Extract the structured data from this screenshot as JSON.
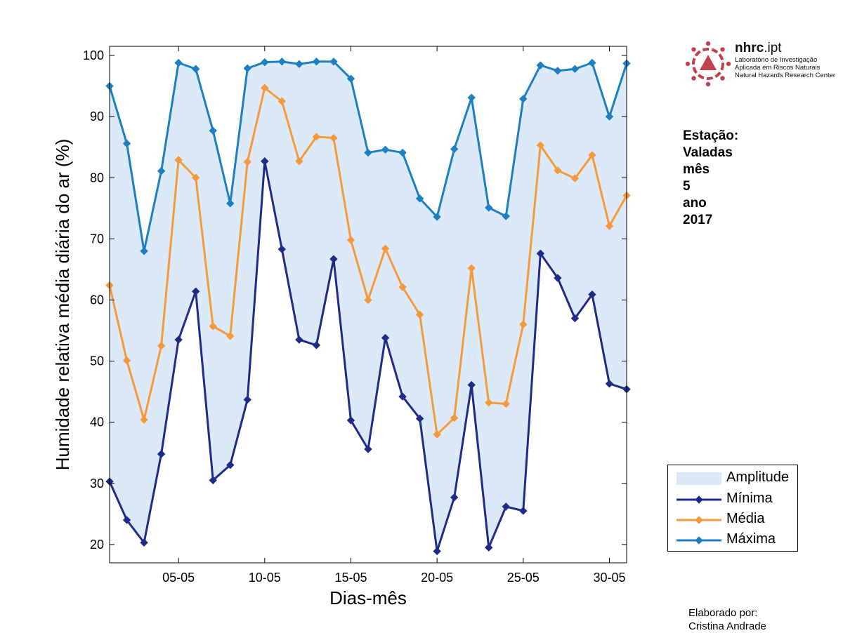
{
  "station": {
    "label": "Estação:",
    "name": "Valadas",
    "month_label": "mês",
    "month": "5",
    "year_label": "ano",
    "year": "2017"
  },
  "credit": {
    "line1": "Elaborado por:",
    "line2": "Cristina Andrade"
  },
  "logo": {
    "name_bold": "nhrc",
    "name_rest": ".ipt",
    "line1": "Laboratório de Investigação",
    "line2": "Aplicada em Riscos Naturais",
    "line3": "Natural Hazards Research Center",
    "color": "#c0404f"
  },
  "chart_data": {
    "type": "line",
    "xlabel": "Dias-mês",
    "ylabel": "Humidade relativa média diária do ar (%)",
    "x": [
      1,
      2,
      3,
      4,
      5,
      6,
      7,
      8,
      9,
      10,
      11,
      12,
      13,
      14,
      15,
      16,
      17,
      18,
      19,
      20,
      21,
      22,
      23,
      24,
      25,
      26,
      27,
      28,
      29,
      30,
      31
    ],
    "xlim": [
      1,
      31
    ],
    "ylim": [
      17,
      101.5
    ],
    "xticks": [
      5,
      10,
      15,
      20,
      25,
      30
    ],
    "xtick_labels": [
      "05-05",
      "10-05",
      "15-05",
      "20-05",
      "25-05",
      "30-05"
    ],
    "yticks": [
      20,
      30,
      40,
      50,
      60,
      70,
      80,
      90,
      100
    ],
    "ytick_labels": [
      "20",
      "30",
      "40",
      "50",
      "60",
      "70",
      "80",
      "90",
      "100"
    ],
    "band": {
      "name": "Amplitude",
      "color": "#dce9f8"
    },
    "series": [
      {
        "name": "Mínima",
        "color": "#1f2c86",
        "values": [
          30.3,
          24.0,
          20.3,
          34.8,
          53.5,
          61.4,
          30.5,
          33.0,
          43.7,
          82.7,
          68.3,
          53.5,
          52.6,
          66.7,
          40.3,
          35.6,
          53.8,
          44.2,
          40.6,
          18.9,
          27.7,
          46.1,
          19.5,
          26.2,
          25.5,
          67.6,
          63.6,
          57.0,
          60.9,
          46.3,
          45.4
        ]
      },
      {
        "name": "Média",
        "color": "#f59a3a",
        "values": [
          62.4,
          50.1,
          40.4,
          52.5,
          82.9,
          80.0,
          55.7,
          54.1,
          82.6,
          94.7,
          92.5,
          82.7,
          86.7,
          86.5,
          69.8,
          60.0,
          68.4,
          62.1,
          57.6,
          38.0,
          40.7,
          65.2,
          43.2,
          43.0,
          56.0,
          85.3,
          81.2,
          79.9,
          83.7,
          72.1,
          77.1
        ]
      },
      {
        "name": "Máxima",
        "color": "#1c7fc0",
        "values": [
          95.0,
          85.6,
          68.0,
          81.1,
          98.8,
          97.8,
          87.7,
          75.8,
          97.9,
          98.9,
          99.0,
          98.6,
          99.0,
          99.0,
          96.2,
          84.1,
          84.6,
          84.1,
          76.6,
          73.6,
          84.7,
          93.1,
          75.1,
          73.7,
          92.9,
          98.4,
          97.5,
          97.8,
          98.8,
          90.0,
          98.7
        ]
      }
    ],
    "legend": "right"
  }
}
